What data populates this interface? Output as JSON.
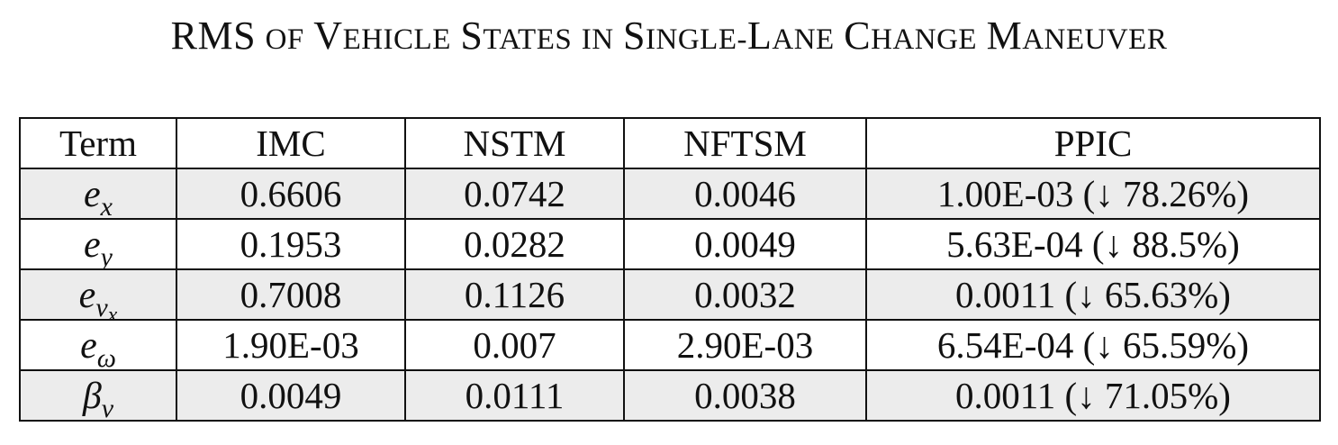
{
  "caption": {
    "w1_big": "RMS",
    "w2": "of",
    "w3_big": "V",
    "w3_rest": "ehicle",
    "w4_big": "S",
    "w4_rest": "tates",
    "w5": "in",
    "w6_big": "S",
    "w6_rest": "ingle-",
    "w6b_big": "L",
    "w6b_rest": "ane",
    "w7_big": "C",
    "w7_rest": "hange",
    "w8_big": "M",
    "w8_rest": "aneuver"
  },
  "table": {
    "headers": [
      "Term",
      "IMC",
      "NSTM",
      "NFTSM",
      "PPIC"
    ],
    "rows": [
      {
        "term_base": "e",
        "term_sub": "x",
        "term_subsub": "",
        "cells": [
          "0.6606",
          "0.0742",
          "0.0046",
          "1.00E-03 (↓ 78.26%)"
        ],
        "bold": [
          false,
          false,
          true,
          true
        ]
      },
      {
        "term_base": "e",
        "term_sub": "y",
        "term_subsub": "",
        "cells": [
          "0.1953",
          "0.0282",
          "0.0049",
          "5.63E-04 (↓ 88.5%)"
        ],
        "bold": [
          false,
          false,
          true,
          true
        ]
      },
      {
        "term_base": "e",
        "term_sub": "v",
        "term_subsub": "x",
        "cells": [
          "0.7008",
          "0.1126",
          "0.0032",
          "0.0011 (↓ 65.63%)"
        ],
        "bold": [
          false,
          false,
          true,
          true
        ]
      },
      {
        "term_base": "e",
        "term_sub": "ω",
        "term_subsub": "",
        "cells": [
          "1.90E-03",
          "0.007",
          "2.90E-03",
          "6.54E-04 (↓ 65.59%)"
        ],
        "bold": [
          true,
          false,
          false,
          true
        ]
      },
      {
        "term_base": "β",
        "term_sub": "v",
        "term_subsub": "",
        "cells": [
          "0.0049",
          "0.0111",
          "0.0038",
          "0.0011 (↓ 71.05%)"
        ],
        "bold": [
          false,
          false,
          true,
          true
        ]
      }
    ]
  }
}
